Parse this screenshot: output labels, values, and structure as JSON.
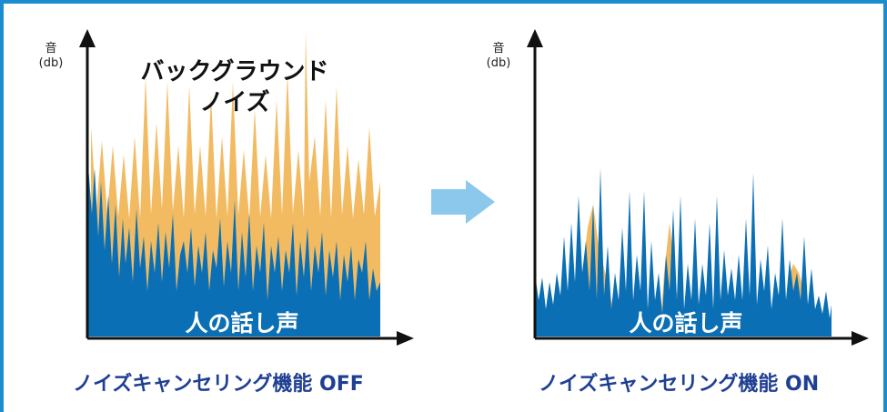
{
  "left_panel": {
    "y_axis_label": "音",
    "y_axis_unit": "(db)",
    "noise_label_line1": "バックグラウンド",
    "noise_label_line2": "ノイズ",
    "voice_label": "人の話し声",
    "caption": "ノイズキャンセリング機能 OFF"
  },
  "right_panel": {
    "y_axis_label": "音",
    "y_axis_unit": "(db)",
    "voice_label": "人の話し声",
    "caption": "ノイズキャンセリング機能 ON"
  },
  "colors": {
    "border": "#1a8ccf",
    "noise": "#f2bb62",
    "voice": "#0a6fb5",
    "arrow": "#8cc8ec",
    "axis": "#111111",
    "caption": "#1f3f93"
  }
}
